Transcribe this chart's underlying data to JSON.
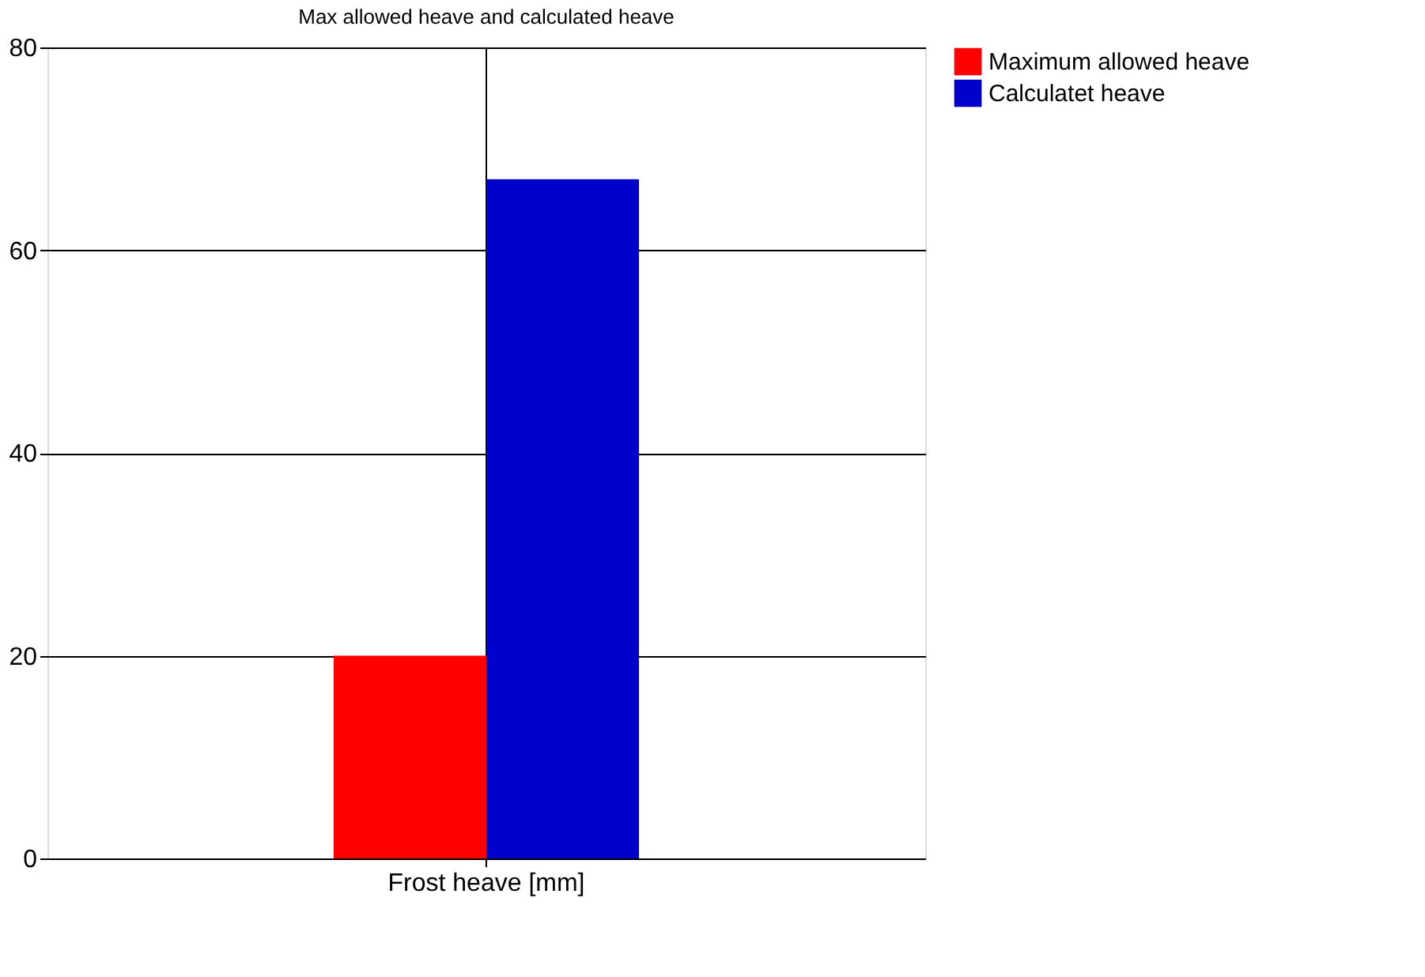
{
  "chart_data": {
    "type": "bar",
    "title": "Max allowed heave and calculated heave",
    "categories": [
      "Frost heave [mm]"
    ],
    "series": [
      {
        "name": "Maximum allowed heave",
        "color": "#ff0000",
        "values": [
          20
        ]
      },
      {
        "name": "Calculatet heave",
        "color": "#0000cc",
        "values": [
          67
        ]
      }
    ],
    "ylim": [
      0,
      80
    ],
    "yticks": [
      0,
      20,
      40,
      60,
      80
    ],
    "grid": true,
    "legend": "right"
  }
}
